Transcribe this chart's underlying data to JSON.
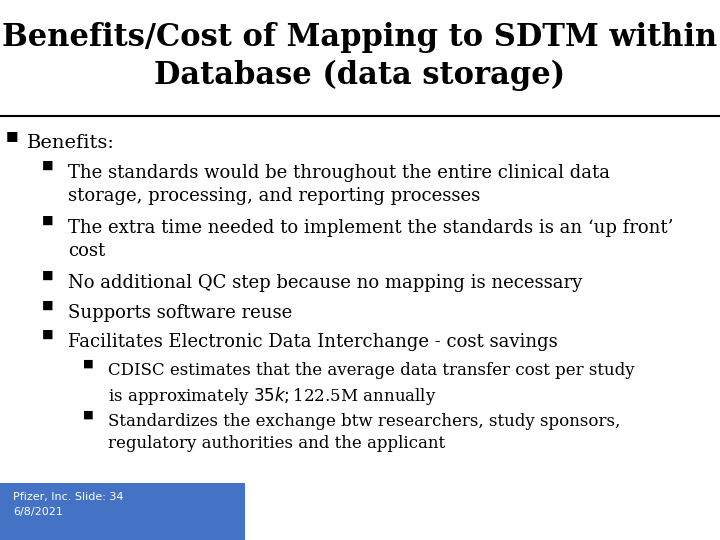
{
  "title_line1": "Benefits/Cost of Mapping to SDTM within",
  "title_line2": "Database (data storage)",
  "title_fontsize": 22,
  "title_color": "#000000",
  "bg_color": "#ffffff",
  "footer_color": "#4472c4",
  "footer_text": "Pfizer, Inc. Slide: 34\n6/8/2021",
  "footer_text_color": "#ffffff",
  "footer_fontsize": 8,
  "separator_color": "#000000",
  "bullet_color": "#000000",
  "text_color": "#000000",
  "bullet_char": "■",
  "content": [
    {
      "level": 0,
      "text": "Benefits:",
      "fontsize": 14
    },
    {
      "level": 1,
      "text": "The standards would be throughout the entire clinical data\nstorage, processing, and reporting processes",
      "fontsize": 13
    },
    {
      "level": 1,
      "text": "The extra time needed to implement the standards is an ‘up front’\ncost",
      "fontsize": 13
    },
    {
      "level": 1,
      "text": "No additional QC step because no mapping is necessary",
      "fontsize": 13
    },
    {
      "level": 1,
      "text": "Supports software reuse",
      "fontsize": 13
    },
    {
      "level": 1,
      "text": "Facilitates Electronic Data Interchange - cost savings",
      "fontsize": 13
    },
    {
      "level": 2,
      "text": "CDISC estimates that the average data transfer cost per study\nis approximately $35k; $122.5M annually",
      "fontsize": 12
    },
    {
      "level": 2,
      "text": "Standardizes the exchange btw researchers, study sponsors,\nregulatory authorities and the applicant",
      "fontsize": 12
    }
  ]
}
